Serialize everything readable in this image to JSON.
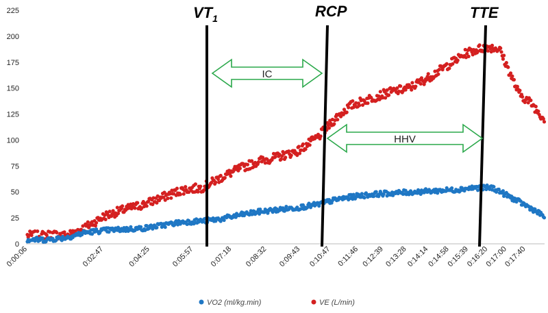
{
  "chart_data": {
    "type": "scatter",
    "title": "",
    "xlabel": "",
    "ylabel": "",
    "ylim": [
      0,
      225
    ],
    "yticks": [
      0,
      25,
      50,
      75,
      100,
      125,
      150,
      175,
      200,
      225
    ],
    "xlim_seconds": [
      6,
      1100
    ],
    "xticks": [
      {
        "label": "0:00:06",
        "t": 6
      },
      {
        "label": "0:02:47",
        "t": 167
      },
      {
        "label": "0:04:25",
        "t": 265
      },
      {
        "label": "0:05:57",
        "t": 357
      },
      {
        "label": "0:07:18",
        "t": 438
      },
      {
        "label": "0:08:32",
        "t": 512
      },
      {
        "label": "0:09:43",
        "t": 583
      },
      {
        "label": "0:10:47",
        "t": 647
      },
      {
        "label": "0:11:46",
        "t": 706
      },
      {
        "label": "0:12:39",
        "t": 759
      },
      {
        "label": "0:13:28",
        "t": 808
      },
      {
        "label": "0:14:14",
        "t": 854
      },
      {
        "label": "0:14:58",
        "t": 898
      },
      {
        "label": "0:15:39",
        "t": 939
      },
      {
        "label": "0:16:20",
        "t": 980
      },
      {
        "label": "0:17:00",
        "t": 1020
      },
      {
        "label": "0:17:40",
        "t": 1060
      }
    ],
    "series": [
      {
        "name": "VO2 (ml/kg.min)",
        "color": "#1f77c4",
        "x_index": [
          0,
          30,
          60,
          90,
          120,
          150,
          180,
          210,
          240,
          270,
          300,
          330,
          360,
          390,
          420,
          450,
          480,
          510,
          540,
          570,
          600,
          630,
          660,
          690,
          720,
          750,
          780,
          800
        ],
        "values": [
          4,
          4,
          6,
          11,
          13,
          14,
          15,
          18,
          21,
          22,
          24,
          28,
          31,
          33,
          35,
          38,
          43,
          46,
          48,
          49,
          50,
          51,
          52,
          54,
          54,
          44,
          34,
          26
        ]
      },
      {
        "name": "VE (L/min)",
        "color": "#d42020",
        "x_index": [
          0,
          20,
          40,
          60,
          90,
          120,
          150,
          180,
          210,
          240,
          270,
          300,
          330,
          360,
          390,
          420,
          450,
          480,
          500,
          530,
          560,
          590,
          620,
          650,
          680,
          710,
          730,
          760,
          780,
          800
        ],
        "values": [
          8,
          8,
          9,
          8,
          16,
          27,
          33,
          38,
          45,
          52,
          54,
          64,
          73,
          80,
          84,
          90,
          103,
          123,
          133,
          140,
          146,
          150,
          160,
          172,
          184,
          190,
          188,
          145,
          135,
          120
        ]
      }
    ],
    "markers": [
      {
        "label": "VT",
        "sub": "1"
      },
      {
        "label": "RCP",
        "sub": ""
      },
      {
        "label": "TTE",
        "sub": ""
      }
    ],
    "regions": [
      {
        "label": "IC",
        "from_marker": 0,
        "to_marker": 1,
        "y": 160
      },
      {
        "label": "HHV",
        "from_marker": 1,
        "to_marker": 2,
        "y": 100
      }
    ],
    "legend": {
      "position": "bottom-center",
      "entries": [
        "VO2 (ml/kg.min)",
        "VE (L/min)"
      ]
    },
    "grid": false,
    "region_color": "#2aa84a"
  }
}
